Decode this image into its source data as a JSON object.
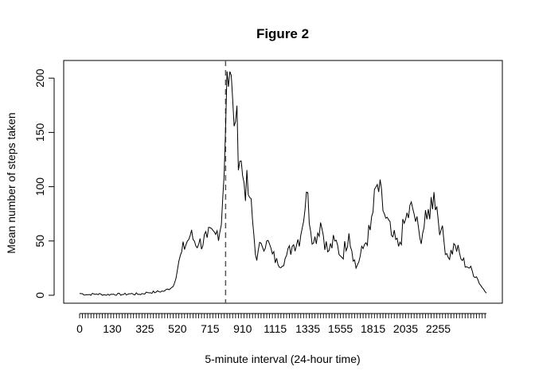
{
  "chart_data": {
    "type": "line",
    "title": "Figure 2",
    "xlabel": "5-minute interval (24-hour time)",
    "ylabel": "Mean number of steps taken",
    "ylim": [
      0,
      206
    ],
    "y_ticks": [
      0,
      50,
      100,
      150,
      200
    ],
    "x_tick_labels": [
      "0",
      "130",
      "325",
      "520",
      "715",
      "910",
      "1115",
      "1335",
      "1555",
      "1815",
      "2035",
      "2255"
    ],
    "grid": false,
    "legend": "none",
    "vline_interval": 835,
    "series": [
      {
        "x_index": [
          0,
          6,
          12,
          18,
          24,
          30,
          36,
          42,
          48,
          54,
          60,
          66,
          72,
          78,
          84,
          90,
          96,
          100,
          103,
          104,
          108,
          110,
          115,
          120,
          125,
          128,
          132,
          136,
          140,
          145,
          150,
          156,
          160,
          165,
          170,
          175,
          180,
          185,
          190,
          195,
          200,
          205,
          210,
          215,
          220,
          225,
          230,
          235,
          240,
          245,
          250,
          255,
          260,
          265,
          270,
          275,
          280,
          283,
          287
        ],
        "values": [
          1.7,
          0.5,
          1.2,
          0.3,
          1.0,
          0.6,
          1.4,
          0.9,
          2.5,
          3.0,
          4.0,
          8.0,
          40.0,
          55.0,
          47.0,
          53.0,
          56.0,
          65.0,
          155.0,
          206.2,
          180.0,
          160.0,
          110.0,
          90.0,
          32.0,
          48.0,
          50.0,
          38.0,
          28.0,
          34.0,
          45.0,
          55.0,
          95.0,
          48.0,
          67.0,
          40.0,
          50.0,
          35.0,
          57.0,
          25.0,
          43.0,
          60.0,
          102.0,
          75.0,
          55.0,
          45.0,
          70.0,
          80.0,
          53.0,
          70.0,
          95.0,
          60.0,
          35.0,
          46.0,
          32.0,
          25.0,
          17.0,
          9.0,
          2.0
        ]
      }
    ]
  }
}
